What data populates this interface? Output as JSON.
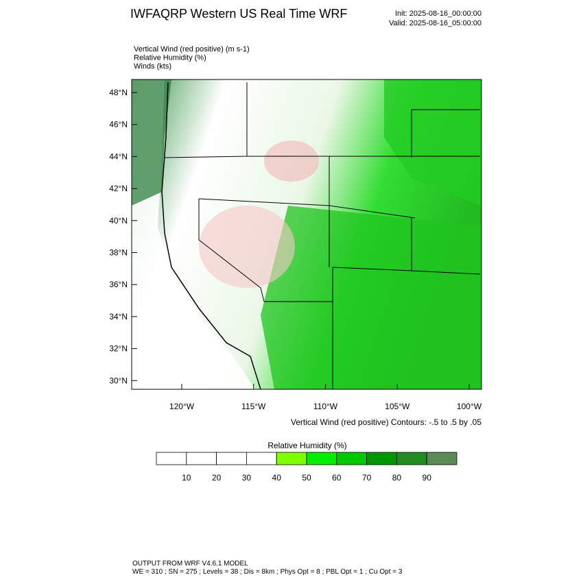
{
  "header": {
    "title": "IWFAQRP Western US Real Time WRF",
    "init": "Init: 2025-08-16_00:00:00",
    "valid": "Valid: 2025-08-16_05:00:00"
  },
  "fields": [
    "Vertical Wind (red positive)   (m s-1)",
    "Relative Humidity   (%)",
    "Winds   (kts)"
  ],
  "map": {
    "lat_labels": [
      "48°N",
      "46°N",
      "44°N",
      "42°N",
      "40°N",
      "38°N",
      "36°N",
      "34°N",
      "32°N",
      "30°N"
    ],
    "lon_labels": [
      "120°W",
      "115°W",
      "110°W",
      "105°W",
      "100°W"
    ],
    "contour_note": "Vertical Wind (red positive) Contours: -.5 to .5 by .05"
  },
  "colorbar": {
    "title": "Relative Humidity  (%)",
    "labels": [
      10,
      20,
      30,
      40,
      50,
      60,
      70,
      80,
      90
    ],
    "colors": [
      "#ffffff",
      "#ffffff",
      "#ffffff",
      "#ffffff",
      "#80ff00",
      "#00f000",
      "#00c800",
      "#009600",
      "#228b22",
      "#5a8a5a"
    ]
  },
  "footer": {
    "line1": "OUTPUT FROM WRF V4.6.1 MODEL",
    "line2": "WE = 310 ; SN = 275 ; Levels = 38 ; Dis = 8km ; Phys Opt = 8 ; PBL Opt = 1 ; Cu Opt = 3"
  }
}
